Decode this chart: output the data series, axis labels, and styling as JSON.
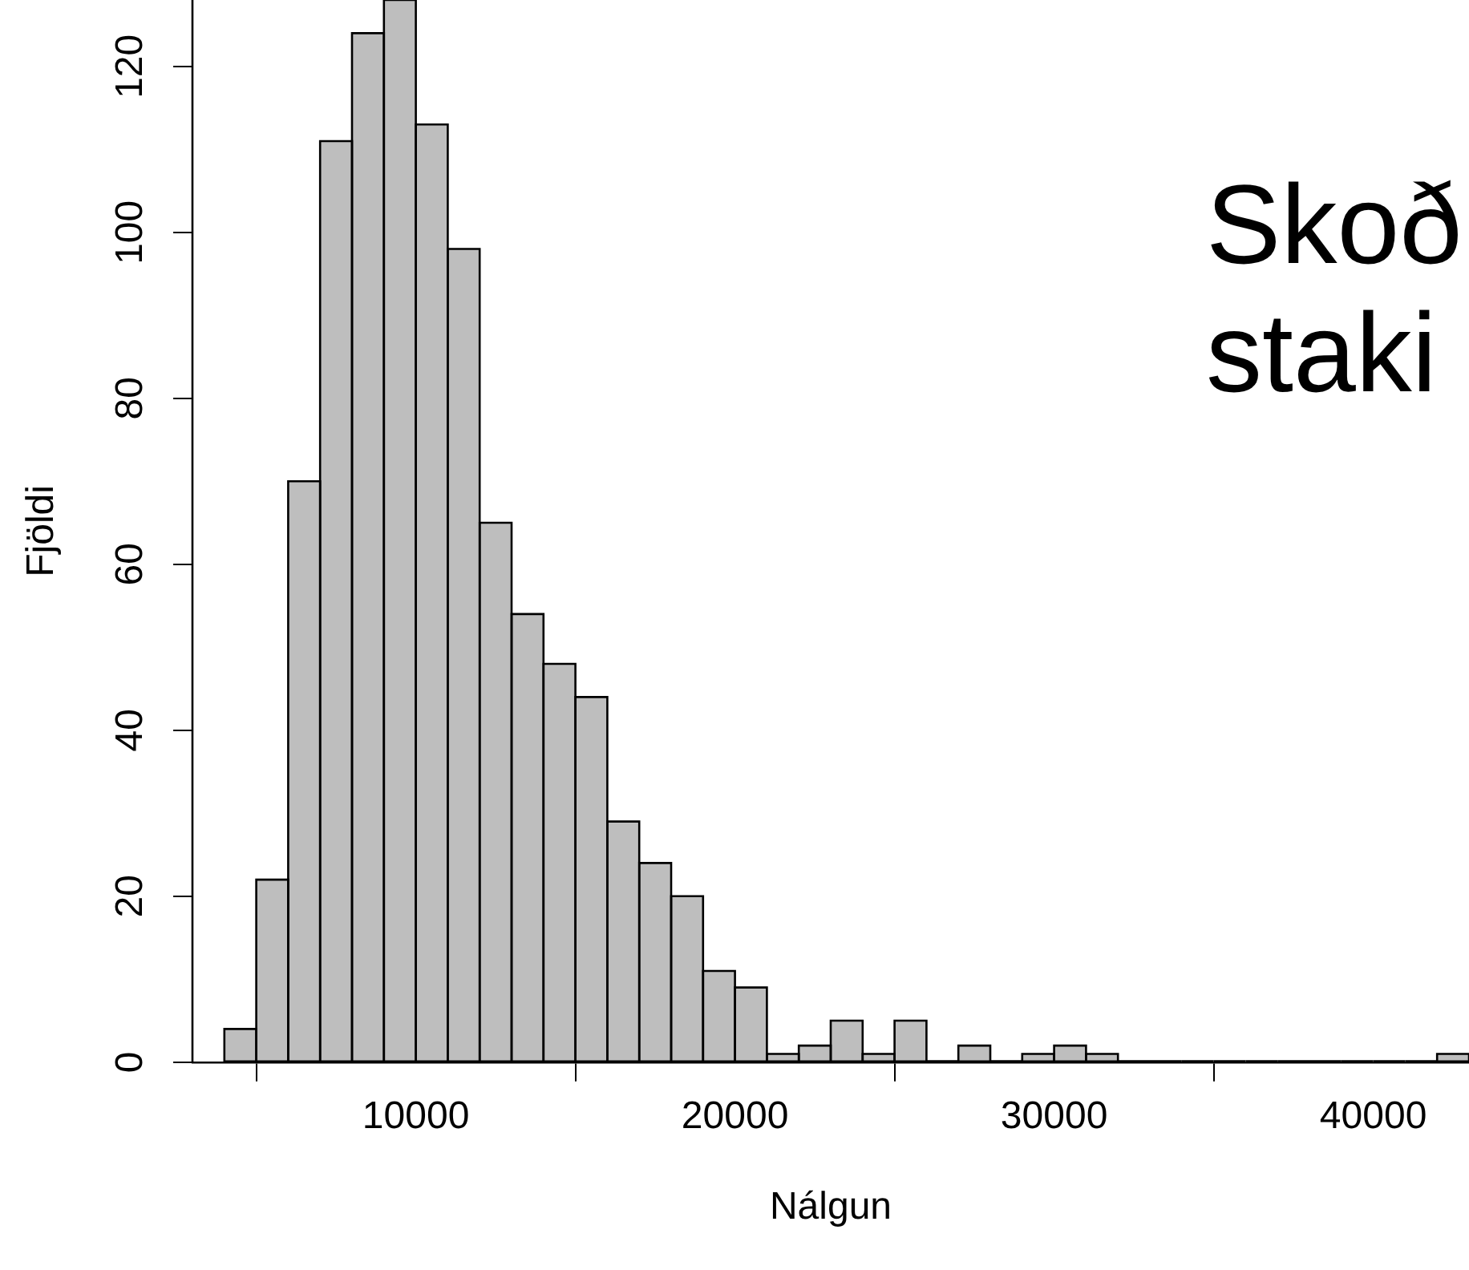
{
  "chart_data": {
    "type": "histogram",
    "xlabel": "Nálgun",
    "ylabel": "Fjöldi",
    "bins": [
      4000,
      5000,
      6000,
      7000,
      8000,
      9000,
      10000,
      11000,
      12000,
      13000,
      14000,
      15000,
      16000,
      17000,
      18000,
      19000,
      20000,
      21000,
      22000,
      23000,
      24000,
      25000,
      26000,
      27000,
      28000,
      29000,
      30000,
      31000,
      32000,
      33000,
      34000,
      35000,
      36000,
      37000,
      38000,
      39000,
      40000,
      41000,
      42000,
      43000
    ],
    "values": [
      4,
      22,
      70,
      111,
      124,
      128,
      113,
      98,
      65,
      54,
      48,
      44,
      29,
      24,
      20,
      11,
      9,
      1,
      2,
      5,
      1,
      5,
      0,
      2,
      0,
      1,
      2,
      1,
      0,
      0,
      0,
      0,
      0,
      0,
      0,
      0,
      0,
      0,
      1
    ],
    "color": "#bebebe",
    "xlim": [
      3000,
      43000
    ],
    "xticks": [
      10000,
      20000,
      30000,
      40000
    ],
    "ylim": [
      0,
      128
    ],
    "yticks": [
      0,
      20,
      40,
      60,
      80,
      100,
      120
    ],
    "grid": false,
    "legend": false,
    "annotations": [
      "Skoð",
      "staki"
    ]
  }
}
